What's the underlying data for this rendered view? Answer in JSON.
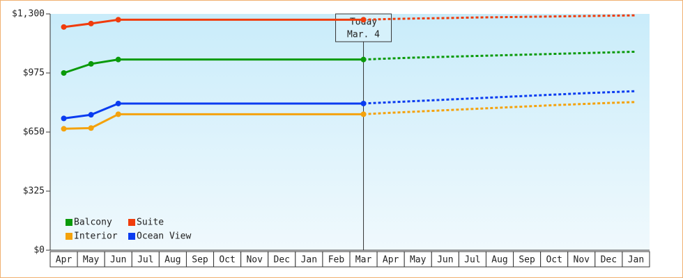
{
  "chart_data": {
    "type": "line",
    "categories": [
      "Apr",
      "May",
      "Jun",
      "Jul",
      "Aug",
      "Sep",
      "Oct",
      "Nov",
      "Dec",
      "Jan",
      "Feb",
      "Mar",
      "Apr",
      "May",
      "Jun",
      "Jul",
      "Aug",
      "Sep",
      "Oct",
      "Nov",
      "Dec",
      "Jan"
    ],
    "series": [
      {
        "name": "Balcony",
        "color": "#0a9a0a",
        "values": [
          975,
          1025,
          1049,
          1049,
          1049,
          1049,
          1049,
          1049,
          1049,
          1049,
          1049,
          1049,
          null,
          null,
          null,
          null,
          null,
          null,
          null,
          null,
          null,
          null
        ],
        "forecast": [
          null,
          null,
          null,
          null,
          null,
          null,
          null,
          null,
          null,
          null,
          null,
          1049,
          1055,
          1060,
          1064,
          1068,
          1072,
          1076,
          1080,
          1084,
          1088,
          1092
        ]
      },
      {
        "name": "Suite",
        "color": "#f03c0c",
        "values": [
          1228,
          1247,
          1268,
          1268,
          1268,
          1268,
          1268,
          1268,
          1268,
          1268,
          1268,
          1268,
          null,
          null,
          null,
          null,
          null,
          null,
          null,
          null,
          null,
          null
        ],
        "forecast": [
          null,
          null,
          null,
          null,
          null,
          null,
          null,
          null,
          null,
          null,
          null,
          1268,
          1272,
          1275,
          1277,
          1280,
          1282,
          1284,
          1286,
          1288,
          1290,
          1292
        ]
      },
      {
        "name": "Interior",
        "color": "#f4a20c",
        "values": [
          668,
          672,
          748,
          748,
          748,
          748,
          748,
          748,
          748,
          748,
          748,
          748,
          null,
          null,
          null,
          null,
          null,
          null,
          null,
          null,
          null,
          null
        ],
        "forecast": [
          null,
          null,
          null,
          null,
          null,
          null,
          null,
          null,
          null,
          null,
          null,
          748,
          756,
          763,
          770,
          777,
          784,
          791,
          798,
          804,
          810,
          815
        ]
      },
      {
        "name": "Ocean View",
        "color": "#0a3cf0",
        "values": [
          725,
          745,
          807,
          807,
          807,
          807,
          807,
          807,
          807,
          807,
          807,
          807,
          null,
          null,
          null,
          null,
          null,
          null,
          null,
          null,
          null,
          null
        ],
        "forecast": [
          null,
          null,
          null,
          null,
          null,
          null,
          null,
          null,
          null,
          null,
          null,
          807,
          814,
          821,
          828,
          835,
          842,
          849,
          856,
          863,
          869,
          875
        ]
      }
    ],
    "ylim": [
      0,
      1300
    ],
    "yticks": [
      {
        "value": 0,
        "label": "$0"
      },
      {
        "value": 325,
        "label": "$325"
      },
      {
        "value": 650,
        "label": "$650"
      },
      {
        "value": 975,
        "label": "$975"
      },
      {
        "value": 1300,
        "label": "$1,300"
      }
    ],
    "annotation": {
      "line1": "Today",
      "line2": "Mar. 4"
    },
    "legend": "lower-left"
  }
}
